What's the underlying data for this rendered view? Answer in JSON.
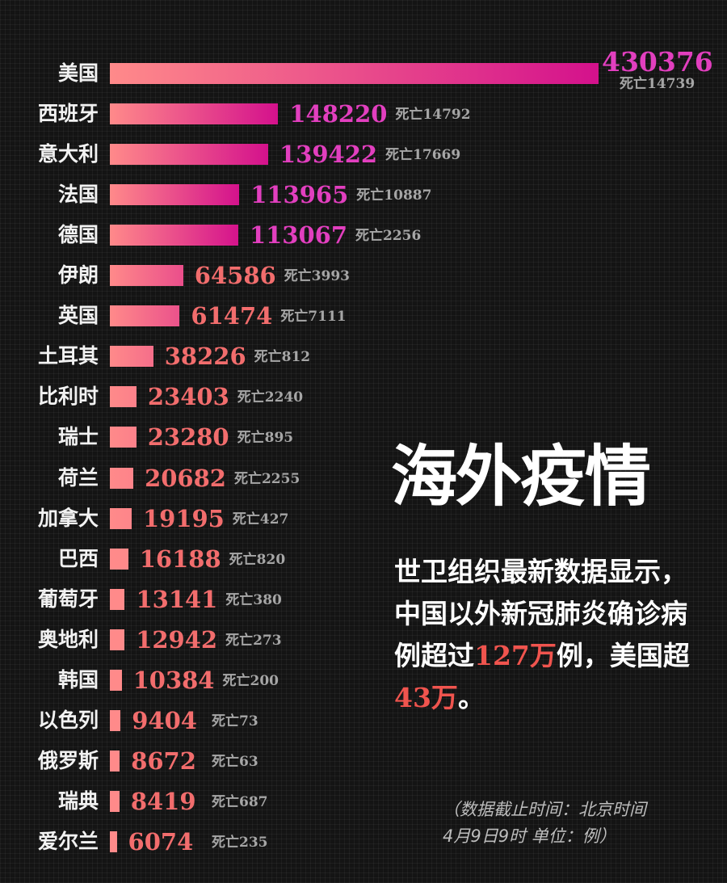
{
  "chart_data": {
    "type": "bar",
    "orientation": "horizontal",
    "title": "海外疫情",
    "categories": [
      "美国",
      "西班牙",
      "意大利",
      "法国",
      "德国",
      "伊朗",
      "英国",
      "土耳其",
      "比利时",
      "瑞士",
      "荷兰",
      "加拿大",
      "巴西",
      "葡萄牙",
      "奥地利",
      "韩国",
      "以色列",
      "俄罗斯",
      "瑞典",
      "爱尔兰"
    ],
    "series": [
      {
        "values": [
          430376,
          148220,
          139422,
          113965,
          113067,
          64586,
          61474,
          38226,
          23403,
          23280,
          20682,
          19195,
          16188,
          13141,
          12942,
          10384,
          9404,
          8672,
          8419,
          6074
        ]
      }
    ],
    "deaths_prefix": "死亡",
    "deaths": [
      14739,
      14792,
      17669,
      10887,
      2256,
      3993,
      7111,
      812,
      2240,
      895,
      2255,
      427,
      820,
      380,
      273,
      200,
      73,
      63,
      687,
      235
    ],
    "colors": {
      "bar_light": "#ff8a8a",
      "bar_strong": "#d4118c",
      "value_light": "#f26d6d",
      "value_strong": "#e23fbf"
    }
  },
  "description": {
    "part1": "世卫组织最新数据显示，中国以外新冠肺炎确诊病例超过",
    "num1": "127万",
    "part2": "例，美国超",
    "num2": "43万",
    "part3": "。"
  },
  "note": {
    "line1": "（数据截止时间：北京时间",
    "line2": "4月9日9时 单位：例）"
  }
}
